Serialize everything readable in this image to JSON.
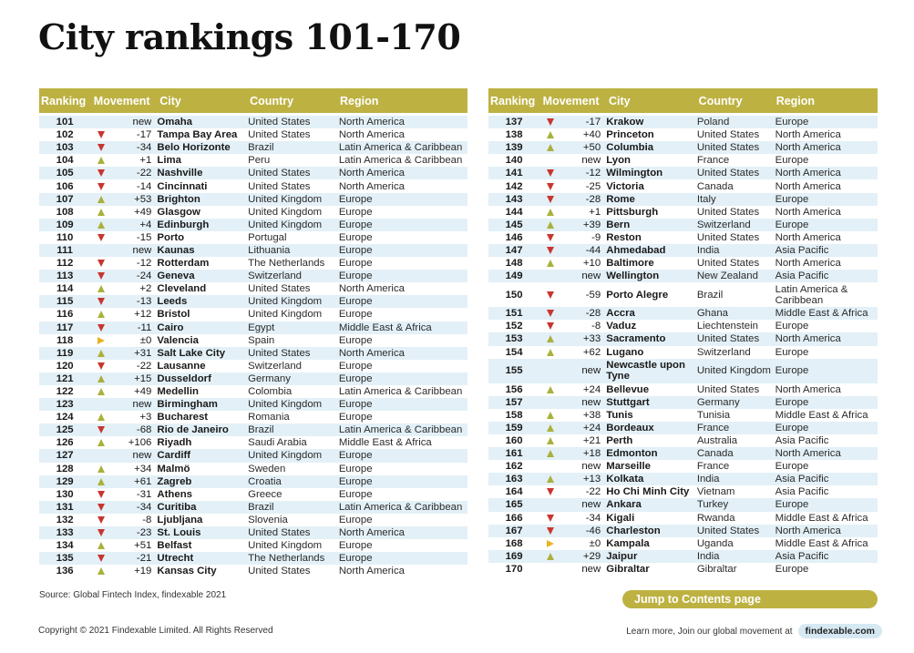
{
  "title": "City rankings 101-170",
  "columns": {
    "rank": "Ranking",
    "movement": "Movement",
    "city": "City",
    "country": "Country",
    "region": "Region"
  },
  "colors": {
    "header": "#bdb142",
    "row_shade": "#e3f0f7",
    "up": "#a9b13a",
    "down": "#c8352f",
    "same": "#e8b324"
  },
  "left_rows": [
    {
      "rank": "101",
      "dir": "new",
      "mv": "new",
      "city": "Omaha",
      "country": "United States",
      "region": "North America"
    },
    {
      "rank": "102",
      "dir": "down",
      "mv": "-17",
      "city": "Tampa Bay Area",
      "country": "United States",
      "region": "North America"
    },
    {
      "rank": "103",
      "dir": "down",
      "mv": "-34",
      "city": "Belo Horizonte",
      "country": "Brazil",
      "region": "Latin America & Caribbean"
    },
    {
      "rank": "104",
      "dir": "up",
      "mv": "+1",
      "city": "Lima",
      "country": "Peru",
      "region": "Latin America & Caribbean"
    },
    {
      "rank": "105",
      "dir": "down",
      "mv": "-22",
      "city": "Nashville",
      "country": "United States",
      "region": "North America"
    },
    {
      "rank": "106",
      "dir": "down",
      "mv": "-14",
      "city": "Cincinnati",
      "country": "United States",
      "region": "North America"
    },
    {
      "rank": "107",
      "dir": "up",
      "mv": "+53",
      "city": "Brighton",
      "country": "United Kingdom",
      "region": "Europe"
    },
    {
      "rank": "108",
      "dir": "up",
      "mv": "+49",
      "city": "Glasgow",
      "country": "United Kingdom",
      "region": "Europe"
    },
    {
      "rank": "109",
      "dir": "up",
      "mv": "+4",
      "city": "Edinburgh",
      "country": "United Kingdom",
      "region": "Europe"
    },
    {
      "rank": "110",
      "dir": "down",
      "mv": "-15",
      "city": "Porto",
      "country": "Portugal",
      "region": "Europe"
    },
    {
      "rank": "111",
      "dir": "new",
      "mv": "new",
      "city": "Kaunas",
      "country": "Lithuania",
      "region": "Europe"
    },
    {
      "rank": "112",
      "dir": "down",
      "mv": "-12",
      "city": "Rotterdam",
      "country": "The Netherlands",
      "region": "Europe"
    },
    {
      "rank": "113",
      "dir": "down",
      "mv": "-24",
      "city": "Geneva",
      "country": "Switzerland",
      "region": "Europe"
    },
    {
      "rank": "114",
      "dir": "up",
      "mv": "+2",
      "city": "Cleveland",
      "country": "United States",
      "region": "North America"
    },
    {
      "rank": "115",
      "dir": "down",
      "mv": "-13",
      "city": "Leeds",
      "country": "United Kingdom",
      "region": "Europe"
    },
    {
      "rank": "116",
      "dir": "up",
      "mv": "+12",
      "city": "Bristol",
      "country": "United Kingdom",
      "region": "Europe"
    },
    {
      "rank": "117",
      "dir": "down",
      "mv": "-11",
      "city": "Cairo",
      "country": "Egypt",
      "region": "Middle East & Africa"
    },
    {
      "rank": "118",
      "dir": "same",
      "mv": "±0",
      "city": "Valencia",
      "country": "Spain",
      "region": "Europe"
    },
    {
      "rank": "119",
      "dir": "up",
      "mv": "+31",
      "city": "Salt Lake City",
      "country": "United States",
      "region": "North America"
    },
    {
      "rank": "120",
      "dir": "down",
      "mv": "-22",
      "city": "Lausanne",
      "country": "Switzerland",
      "region": "Europe"
    },
    {
      "rank": "121",
      "dir": "up",
      "mv": "+15",
      "city": "Dusseldorf",
      "country": "Germany",
      "region": "Europe"
    },
    {
      "rank": "122",
      "dir": "up",
      "mv": "+49",
      "city": "Medellin",
      "country": "Colombia",
      "region": "Latin America & Caribbean"
    },
    {
      "rank": "123",
      "dir": "new",
      "mv": "new",
      "city": "Birmingham",
      "country": "United Kingdom",
      "region": "Europe"
    },
    {
      "rank": "124",
      "dir": "up",
      "mv": "+3",
      "city": "Bucharest",
      "country": "Romania",
      "region": "Europe"
    },
    {
      "rank": "125",
      "dir": "down",
      "mv": "-68",
      "city": "Rio de Janeiro",
      "country": "Brazil",
      "region": "Latin America & Caribbean"
    },
    {
      "rank": "126",
      "dir": "up",
      "mv": "+106",
      "city": "Riyadh",
      "country": "Saudi Arabia",
      "region": "Middle East & Africa"
    },
    {
      "rank": "127",
      "dir": "new",
      "mv": "new",
      "city": "Cardiff",
      "country": "United Kingdom",
      "region": "Europe"
    },
    {
      "rank": "128",
      "dir": "up",
      "mv": "+34",
      "city": "Malmö",
      "country": "Sweden",
      "region": "Europe"
    },
    {
      "rank": "129",
      "dir": "up",
      "mv": "+61",
      "city": "Zagreb",
      "country": "Croatia",
      "region": "Europe"
    },
    {
      "rank": "130",
      "dir": "down",
      "mv": "-31",
      "city": "Athens",
      "country": "Greece",
      "region": "Europe"
    },
    {
      "rank": "131",
      "dir": "down",
      "mv": "-34",
      "city": "Curitiba",
      "country": "Brazil",
      "region": "Latin America & Caribbean"
    },
    {
      "rank": "132",
      "dir": "down",
      "mv": "-8",
      "city": "Ljubljana",
      "country": "Slovenia",
      "region": "Europe"
    },
    {
      "rank": "133",
      "dir": "down",
      "mv": "-23",
      "city": "St. Louis",
      "country": "United States",
      "region": "North America"
    },
    {
      "rank": "134",
      "dir": "up",
      "mv": "+51",
      "city": "Belfast",
      "country": "United Kingdom",
      "region": "Europe"
    },
    {
      "rank": "135",
      "dir": "down",
      "mv": "-21",
      "city": "Utrecht",
      "country": "The Netherlands",
      "region": "Europe"
    },
    {
      "rank": "136",
      "dir": "up",
      "mv": "+19",
      "city": "Kansas City",
      "country": "United States",
      "region": "North America"
    }
  ],
  "right_rows": [
    {
      "rank": "137",
      "dir": "down",
      "mv": "-17",
      "city": "Krakow",
      "country": "Poland",
      "region": "Europe"
    },
    {
      "rank": "138",
      "dir": "up",
      "mv": "+40",
      "city": "Princeton",
      "country": "United States",
      "region": "North America"
    },
    {
      "rank": "139",
      "dir": "up",
      "mv": "+50",
      "city": "Columbia",
      "country": "United States",
      "region": "North America"
    },
    {
      "rank": "140",
      "dir": "new",
      "mv": "new",
      "city": "Lyon",
      "country": "France",
      "region": "Europe"
    },
    {
      "rank": "141",
      "dir": "down",
      "mv": "-12",
      "city": "Wilmington",
      "country": "United States",
      "region": "North America"
    },
    {
      "rank": "142",
      "dir": "down",
      "mv": "-25",
      "city": "Victoria",
      "country": "Canada",
      "region": "North America"
    },
    {
      "rank": "143",
      "dir": "down",
      "mv": "-28",
      "city": "Rome",
      "country": "Italy",
      "region": "Europe"
    },
    {
      "rank": "144",
      "dir": "up",
      "mv": "+1",
      "city": "Pittsburgh",
      "country": "United States",
      "region": "North America"
    },
    {
      "rank": "145",
      "dir": "up",
      "mv": "+39",
      "city": "Bern",
      "country": "Switzerland",
      "region": "Europe"
    },
    {
      "rank": "146",
      "dir": "down",
      "mv": "-9",
      "city": "Reston",
      "country": "United States",
      "region": "North America"
    },
    {
      "rank": "147",
      "dir": "down",
      "mv": "-44",
      "city": "Ahmedabad",
      "country": "India",
      "region": "Asia Pacific"
    },
    {
      "rank": "148",
      "dir": "up",
      "mv": "+10",
      "city": "Baltimore",
      "country": "United States",
      "region": "North America"
    },
    {
      "rank": "149",
      "dir": "new",
      "mv": "new",
      "city": "Wellington",
      "country": "New Zealand",
      "region": "Asia Pacific"
    },
    {
      "rank": "150",
      "dir": "down",
      "mv": "-59",
      "city": "Porto Alegre",
      "country": "Brazil",
      "region": "Latin America & Caribbean",
      "tall": true
    },
    {
      "rank": "151",
      "dir": "down",
      "mv": "-28",
      "city": "Accra",
      "country": "Ghana",
      "region": "Middle East & Africa"
    },
    {
      "rank": "152",
      "dir": "down",
      "mv": "-8",
      "city": "Vaduz",
      "country": "Liechtenstein",
      "region": "Europe"
    },
    {
      "rank": "153",
      "dir": "up",
      "mv": "+33",
      "city": "Sacramento",
      "country": "United States",
      "region": "North America"
    },
    {
      "rank": "154",
      "dir": "up",
      "mv": "+62",
      "city": "Lugano",
      "country": "Switzerland",
      "region": "Europe"
    },
    {
      "rank": "155",
      "dir": "new",
      "mv": "new",
      "city": "Newcastle upon Tyne",
      "country": "United Kingdom",
      "region": "Europe",
      "tall": true
    },
    {
      "rank": "156",
      "dir": "up",
      "mv": "+24",
      "city": "Bellevue",
      "country": "United States",
      "region": "North America"
    },
    {
      "rank": "157",
      "dir": "new",
      "mv": "new",
      "city": "Stuttgart",
      "country": "Germany",
      "region": "Europe"
    },
    {
      "rank": "158",
      "dir": "up",
      "mv": "+38",
      "city": "Tunis",
      "country": "Tunisia",
      "region": "Middle East & Africa"
    },
    {
      "rank": "159",
      "dir": "up",
      "mv": "+24",
      "city": "Bordeaux",
      "country": "France",
      "region": "Europe"
    },
    {
      "rank": "160",
      "dir": "up",
      "mv": "+21",
      "city": "Perth",
      "country": "Australia",
      "region": "Asia Pacific"
    },
    {
      "rank": "161",
      "dir": "up",
      "mv": "+18",
      "city": "Edmonton",
      "country": "Canada",
      "region": "North America"
    },
    {
      "rank": "162",
      "dir": "new",
      "mv": "new",
      "city": "Marseille",
      "country": "France",
      "region": "Europe"
    },
    {
      "rank": "163",
      "dir": "up",
      "mv": "+13",
      "city": "Kolkata",
      "country": "India",
      "region": "Asia Pacific"
    },
    {
      "rank": "164",
      "dir": "down",
      "mv": "-22",
      "city": "Ho Chi Minh City",
      "country": "Vietnam",
      "region": "Asia Pacific"
    },
    {
      "rank": "165",
      "dir": "new",
      "mv": "new",
      "city": "Ankara",
      "country": "Turkey",
      "region": "Europe"
    },
    {
      "rank": "166",
      "dir": "down",
      "mv": "-34",
      "city": "Kigali",
      "country": "Rwanda",
      "region": "Middle East & Africa"
    },
    {
      "rank": "167",
      "dir": "down",
      "mv": "-46",
      "city": "Charleston",
      "country": "United States",
      "region": "North America"
    },
    {
      "rank": "168",
      "dir": "same",
      "mv": "±0",
      "city": "Kampala",
      "country": "Uganda",
      "region": "Middle East & Africa"
    },
    {
      "rank": "169",
      "dir": "up",
      "mv": "+29",
      "city": "Jaipur",
      "country": "India",
      "region": "Asia Pacific"
    },
    {
      "rank": "170",
      "dir": "new",
      "mv": "new",
      "city": "Gibraltar",
      "country": "Gibraltar",
      "region": "Europe"
    }
  ],
  "footer": {
    "source": "Source: Global Fintech Index, findexable 2021",
    "jump_label": "Jump to Contents page",
    "copyright": "Copyright © 2021 Findexable Limited. All Rights Reserved",
    "learn_more": "Learn more, Join our global movement at",
    "site": "findexable.com"
  }
}
